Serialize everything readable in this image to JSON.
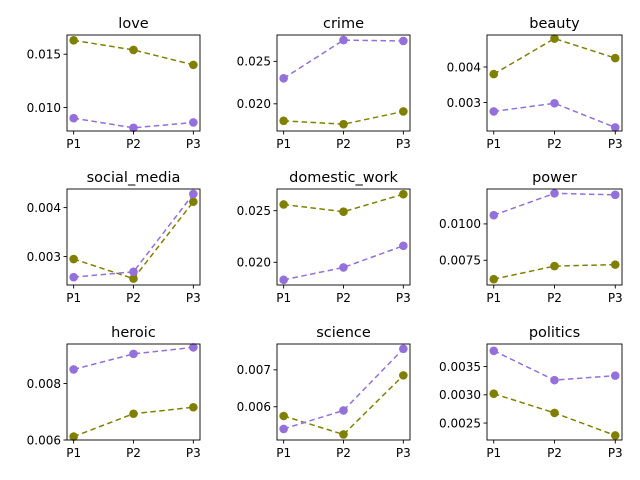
{
  "chart_data": [
    {
      "type": "line",
      "title": "love",
      "categories": [
        "P1",
        "P2",
        "P3"
      ],
      "ylim": [
        0.0078,
        0.0168
      ],
      "yticks": [
        0.01,
        0.015
      ],
      "ytick_labels": [
        "0.010",
        "0.015"
      ],
      "series": [
        {
          "color": "#808000",
          "values": [
            0.0163,
            0.0154,
            0.014
          ]
        },
        {
          "color": "#9370db",
          "values": [
            0.009,
            0.0081,
            0.0086
          ]
        }
      ]
    },
    {
      "type": "line",
      "title": "crime",
      "categories": [
        "P1",
        "P2",
        "P3"
      ],
      "ylim": [
        0.0168,
        0.0281
      ],
      "yticks": [
        0.02,
        0.025
      ],
      "ytick_labels": [
        "0.020",
        "0.025"
      ],
      "series": [
        {
          "color": "#808000",
          "values": [
            0.018,
            0.0176,
            0.0191
          ]
        },
        {
          "color": "#9370db",
          "values": [
            0.023,
            0.0275,
            0.0274
          ]
        }
      ]
    },
    {
      "type": "line",
      "title": "beauty",
      "categories": [
        "P1",
        "P2",
        "P3"
      ],
      "ylim": [
        0.0022,
        0.0049
      ],
      "yticks": [
        0.003,
        0.004
      ],
      "ytick_labels": [
        "0.003",
        "0.004"
      ],
      "series": [
        {
          "color": "#808000",
          "values": [
            0.0038,
            0.0048,
            0.00425
          ]
        },
        {
          "color": "#9370db",
          "values": [
            0.00275,
            0.00298,
            0.0023
          ]
        }
      ]
    },
    {
      "type": "line",
      "title": "social_media",
      "categories": [
        "P1",
        "P2",
        "P3"
      ],
      "ylim": [
        0.00242,
        0.00438
      ],
      "yticks": [
        0.003,
        0.004
      ],
      "ytick_labels": [
        "0.003",
        "0.004"
      ],
      "series": [
        {
          "color": "#808000",
          "values": [
            0.00295,
            0.00255,
            0.00412
          ]
        },
        {
          "color": "#9370db",
          "values": [
            0.00258,
            0.00269,
            0.00428
          ]
        }
      ]
    },
    {
      "type": "line",
      "title": "domestic_work",
      "categories": [
        "P1",
        "P2",
        "P3"
      ],
      "ylim": [
        0.0178,
        0.0271
      ],
      "yticks": [
        0.02,
        0.025
      ],
      "ytick_labels": [
        "0.020",
        "0.025"
      ],
      "series": [
        {
          "color": "#808000",
          "values": [
            0.0256,
            0.0249,
            0.0266
          ]
        },
        {
          "color": "#9370db",
          "values": [
            0.0183,
            0.0195,
            0.0216
          ]
        }
      ]
    },
    {
      "type": "line",
      "title": "power",
      "categories": [
        "P1",
        "P2",
        "P3"
      ],
      "ylim": [
        0.0058,
        0.0124
      ],
      "yticks": [
        0.0075,
        0.01
      ],
      "ytick_labels": [
        "0.0075",
        "0.0100"
      ],
      "series": [
        {
          "color": "#808000",
          "values": [
            0.0062,
            0.0071,
            0.0072
          ]
        },
        {
          "color": "#9370db",
          "values": [
            0.0106,
            0.0121,
            0.012
          ]
        }
      ]
    },
    {
      "type": "line",
      "title": "heroic",
      "categories": [
        "P1",
        "P2",
        "P3"
      ],
      "ylim": [
        0.006,
        0.0094
      ],
      "yticks": [
        0.006,
        0.008
      ],
      "ytick_labels": [
        "0.006",
        "0.008"
      ],
      "series": [
        {
          "color": "#808000",
          "values": [
            0.00612,
            0.00693,
            0.00716
          ]
        },
        {
          "color": "#9370db",
          "values": [
            0.0085,
            0.00905,
            0.00928
          ]
        }
      ]
    },
    {
      "type": "line",
      "title": "science",
      "categories": [
        "P1",
        "P2",
        "P3"
      ],
      "ylim": [
        0.0051,
        0.0077
      ],
      "yticks": [
        0.006,
        0.007
      ],
      "ytick_labels": [
        "0.006",
        "0.007"
      ],
      "series": [
        {
          "color": "#808000",
          "values": [
            0.00575,
            0.00525,
            0.00685
          ]
        },
        {
          "color": "#9370db",
          "values": [
            0.0054,
            0.0059,
            0.00757
          ]
        }
      ]
    },
    {
      "type": "line",
      "title": "politics",
      "categories": [
        "P1",
        "P2",
        "P3"
      ],
      "ylim": [
        0.0022,
        0.0039
      ],
      "yticks": [
        0.0025,
        0.003,
        0.0035
      ],
      "ytick_labels": [
        "0.0025",
        "0.0030",
        "0.0035"
      ],
      "series": [
        {
          "color": "#808000",
          "values": [
            0.00302,
            0.00268,
            0.00228
          ]
        },
        {
          "color": "#9370db",
          "values": [
            0.00378,
            0.00326,
            0.00334
          ]
        }
      ]
    }
  ]
}
